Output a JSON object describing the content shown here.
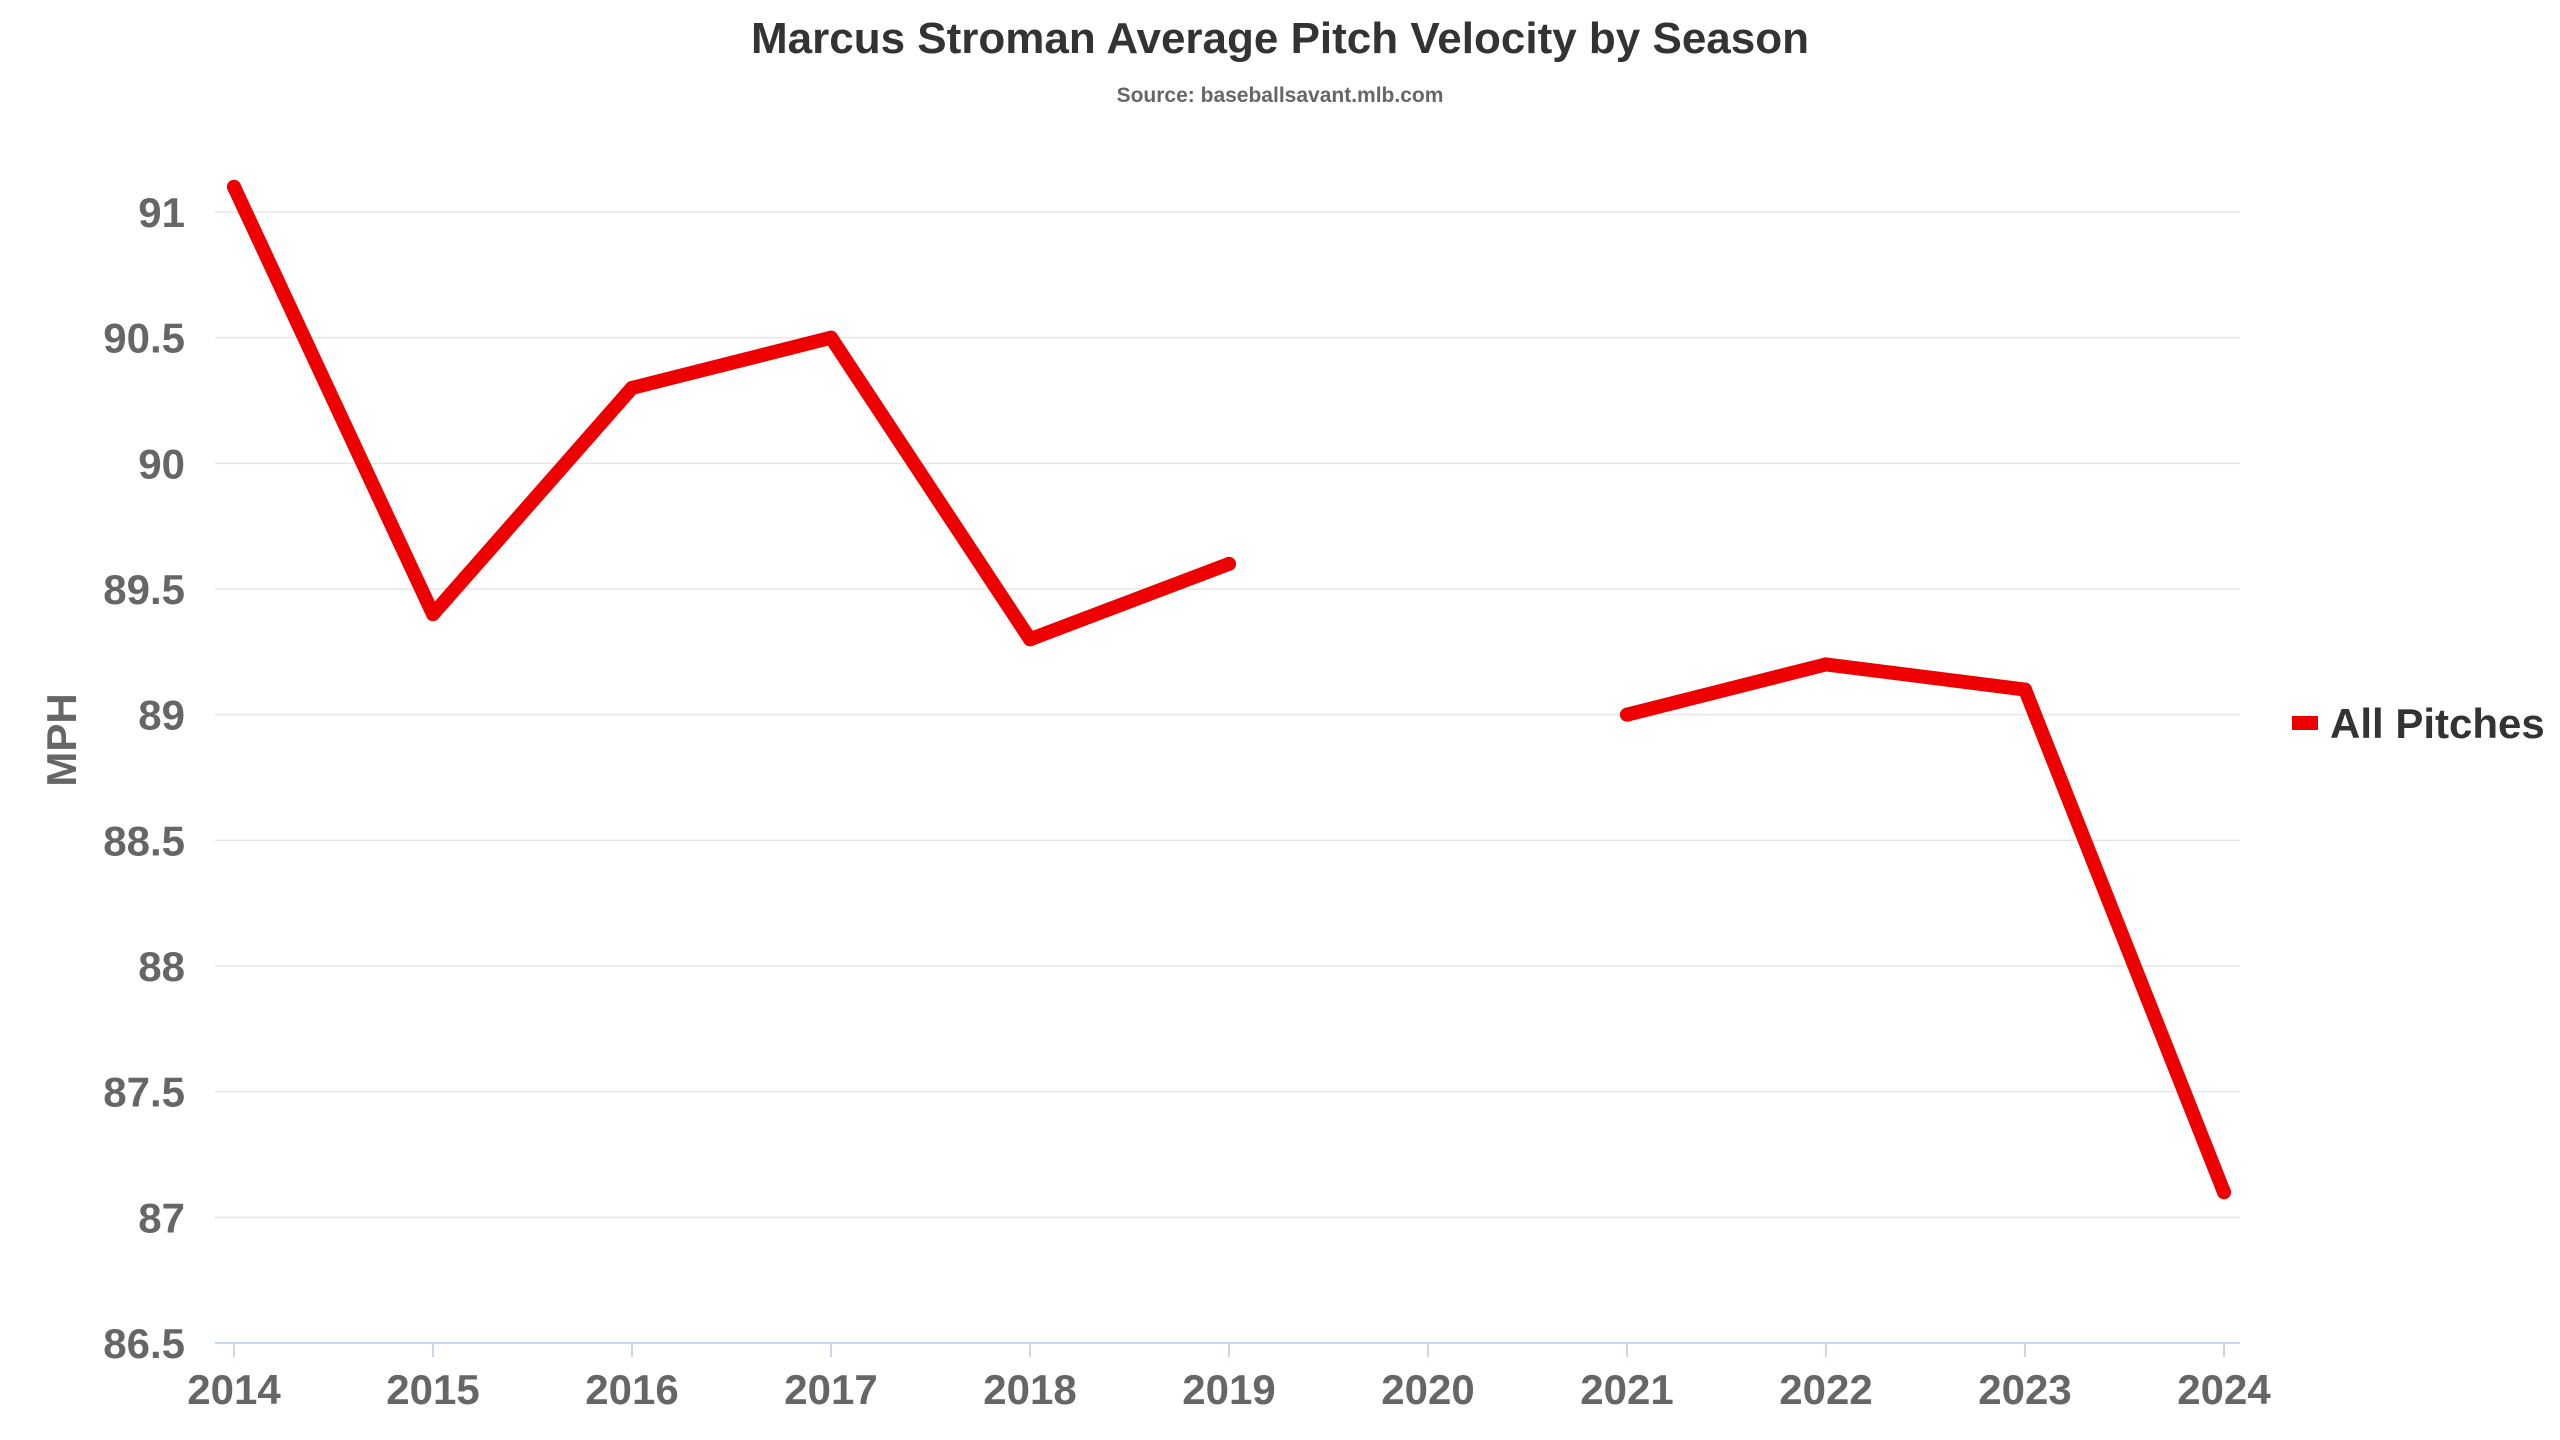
{
  "chart_data": {
    "type": "line",
    "title": "Marcus Stroman Average Pitch Velocity by Season",
    "subtitle": "Source: baseballsavant.mlb.com",
    "xlabel": "",
    "ylabel": "MPH",
    "categories": [
      "2014",
      "2015",
      "2016",
      "2017",
      "2018",
      "2019",
      "2020",
      "2021",
      "2022",
      "2023",
      "2024"
    ],
    "y_ticks": [
      "86.5",
      "87",
      "87.5",
      "88",
      "88.5",
      "89",
      "89.5",
      "90",
      "90.5",
      "91"
    ],
    "ylim": [
      86.5,
      91
    ],
    "grid": true,
    "legend_position": "right",
    "series": [
      {
        "name": "All Pitches",
        "color": "#ee0000",
        "values": [
          91.1,
          89.4,
          90.3,
          90.5,
          89.3,
          89.6,
          null,
          89.0,
          89.2,
          89.1,
          87.1
        ]
      }
    ]
  }
}
